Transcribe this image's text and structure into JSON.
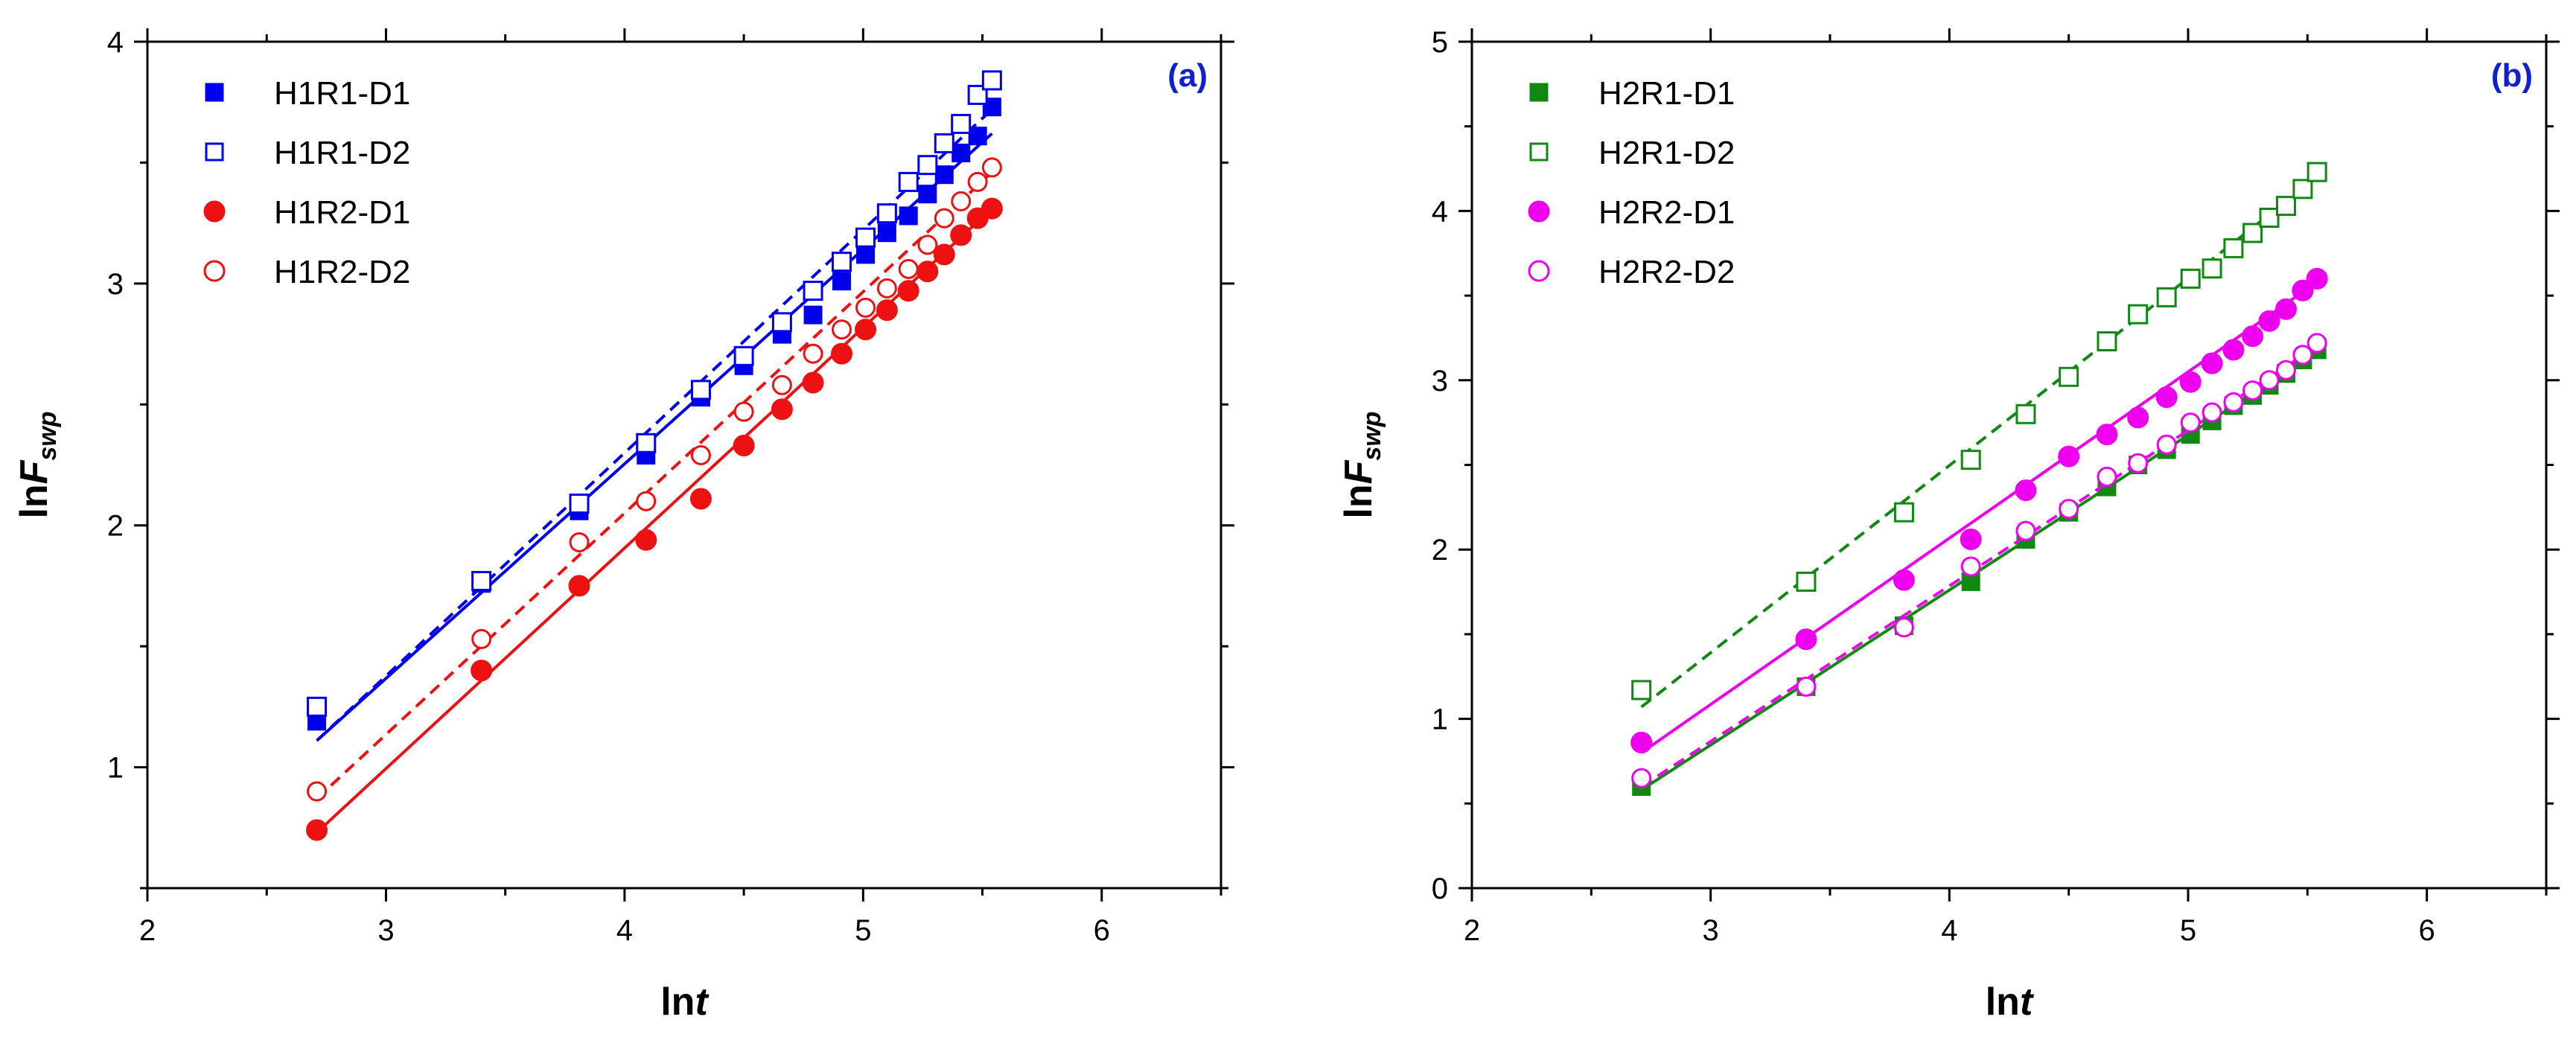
{
  "colors": {
    "blue": "#0000ee",
    "red": "#ee1111",
    "green": "#118811",
    "magenta": "#ee00ee",
    "panel_label": "#1020d0"
  },
  "chart_data": [
    {
      "type": "scatter",
      "panel_label": "(a)",
      "xlabel_prefix": "ln",
      "xlabel_var": "t",
      "ylabel_prefix": "ln",
      "ylabel_var": "F",
      "ylabel_sub": "swp",
      "xlim": [
        2,
        6.5
      ],
      "ylim": [
        0.5,
        4
      ],
      "xticks": [
        2,
        3,
        4,
        5,
        6
      ],
      "yticks": [
        1,
        2,
        3,
        4
      ],
      "legend_position": "top-left",
      "series": [
        {
          "name": "H1R1-D1",
          "color": "blue",
          "marker": "square",
          "filled": true,
          "fit_style": "solid",
          "fit": [
            [
              2.71,
              1.11
            ],
            [
              5.54,
              3.62
            ]
          ],
          "x": [
            2.71,
            3.4,
            3.81,
            4.09,
            4.32,
            4.5,
            4.66,
            4.79,
            4.91,
            5.01,
            5.1,
            5.19,
            5.27,
            5.34,
            5.41,
            5.48,
            5.54
          ],
          "y": [
            1.19,
            1.76,
            2.06,
            2.29,
            2.53,
            2.66,
            2.79,
            2.87,
            3.01,
            3.12,
            3.21,
            3.28,
            3.37,
            3.45,
            3.54,
            3.61,
            3.73
          ]
        },
        {
          "name": "H1R1-D2",
          "color": "blue",
          "marker": "square",
          "filled": false,
          "fit_style": "dashed",
          "fit": [
            [
              2.71,
              1.11
            ],
            [
              5.54,
              3.72
            ]
          ],
          "x": [
            2.71,
            3.4,
            3.81,
            4.09,
            4.32,
            4.5,
            4.66,
            4.79,
            4.91,
            5.01,
            5.1,
            5.19,
            5.27,
            5.34,
            5.41,
            5.48,
            5.54
          ],
          "y": [
            1.25,
            1.77,
            2.09,
            2.34,
            2.56,
            2.7,
            2.84,
            2.97,
            3.09,
            3.19,
            3.29,
            3.42,
            3.49,
            3.58,
            3.66,
            3.78,
            3.84
          ]
        },
        {
          "name": "H1R2-D1",
          "color": "red",
          "marker": "circle",
          "filled": true,
          "fit_style": "solid",
          "fit": [
            [
              2.71,
              0.73
            ],
            [
              5.54,
              3.31
            ]
          ],
          "x": [
            2.71,
            3.4,
            3.81,
            4.09,
            4.32,
            4.5,
            4.66,
            4.79,
            4.91,
            5.01,
            5.1,
            5.19,
            5.27,
            5.34,
            5.41,
            5.48,
            5.54
          ],
          "y": [
            0.74,
            1.4,
            1.75,
            1.94,
            2.11,
            2.33,
            2.48,
            2.59,
            2.71,
            2.81,
            2.89,
            2.97,
            3.05,
            3.12,
            3.2,
            3.27,
            3.31
          ]
        },
        {
          "name": "H1R2-D2",
          "color": "red",
          "marker": "circle",
          "filled": false,
          "fit_style": "dashed",
          "fit": [
            [
              2.71,
              0.87
            ],
            [
              5.54,
              3.46
            ]
          ],
          "x": [
            2.71,
            3.4,
            3.81,
            4.09,
            4.32,
            4.5,
            4.66,
            4.79,
            4.91,
            5.01,
            5.1,
            5.19,
            5.27,
            5.34,
            5.41,
            5.48,
            5.54
          ],
          "y": [
            0.9,
            1.53,
            1.93,
            2.1,
            2.29,
            2.47,
            2.58,
            2.71,
            2.81,
            2.9,
            2.98,
            3.06,
            3.16,
            3.27,
            3.34,
            3.42,
            3.48
          ]
        }
      ]
    },
    {
      "type": "scatter",
      "panel_label": "(b)",
      "xlabel_prefix": "ln",
      "xlabel_var": "t",
      "ylabel_prefix": "ln",
      "ylabel_var": "F",
      "ylabel_sub": "swp",
      "xlim": [
        2,
        6.5
      ],
      "ylim": [
        0,
        5
      ],
      "xticks": [
        2,
        3,
        4,
        5,
        6
      ],
      "yticks": [
        0,
        1,
        2,
        3,
        4,
        5
      ],
      "legend_position": "top-left",
      "series": [
        {
          "name": "H2R1-D1",
          "color": "green",
          "marker": "square",
          "filled": true,
          "fit_style": "solid",
          "fit": [
            [
              2.71,
              0.58
            ],
            [
              5.54,
              3.17
            ]
          ],
          "x": [
            2.71,
            3.4,
            3.81,
            4.09,
            4.32,
            4.5,
            4.66,
            4.79,
            4.91,
            5.01,
            5.1,
            5.19,
            5.27,
            5.34,
            5.41,
            5.48,
            5.54
          ],
          "y": [
            0.6,
            1.19,
            1.55,
            1.81,
            2.06,
            2.22,
            2.37,
            2.5,
            2.59,
            2.68,
            2.76,
            2.85,
            2.91,
            2.97,
            3.04,
            3.12,
            3.18
          ]
        },
        {
          "name": "H2R1-D2",
          "color": "green",
          "marker": "square",
          "filled": false,
          "fit_style": "dashed",
          "fit": [
            [
              2.71,
              1.07
            ],
            [
              5.54,
              4.2
            ]
          ],
          "x": [
            2.71,
            3.4,
            3.81,
            4.09,
            4.32,
            4.5,
            4.66,
            4.79,
            4.91,
            5.01,
            5.1,
            5.19,
            5.27,
            5.34,
            5.41,
            5.48,
            5.54
          ],
          "y": [
            1.17,
            1.81,
            2.22,
            2.53,
            2.8,
            3.02,
            3.23,
            3.39,
            3.49,
            3.6,
            3.66,
            3.78,
            3.87,
            3.96,
            4.03,
            4.13,
            4.23
          ]
        },
        {
          "name": "H2R2-D1",
          "color": "magenta",
          "marker": "circle",
          "filled": true,
          "fit_style": "solid",
          "fit": [
            [
              2.71,
              0.8
            ],
            [
              5.54,
              3.58
            ]
          ],
          "x": [
            2.71,
            3.4,
            3.81,
            4.09,
            4.32,
            4.5,
            4.66,
            4.79,
            4.91,
            5.01,
            5.1,
            5.19,
            5.27,
            5.34,
            5.41,
            5.48,
            5.54
          ],
          "y": [
            0.86,
            1.47,
            1.82,
            2.06,
            2.35,
            2.55,
            2.68,
            2.78,
            2.9,
            2.99,
            3.1,
            3.18,
            3.26,
            3.35,
            3.42,
            3.53,
            3.6
          ]
        },
        {
          "name": "H2R2-D2",
          "color": "magenta",
          "marker": "circle",
          "filled": false,
          "fit_style": "dashed",
          "fit": [
            [
              2.71,
              0.6
            ],
            [
              5.54,
              3.2
            ]
          ],
          "x": [
            2.71,
            3.4,
            3.81,
            4.09,
            4.32,
            4.5,
            4.66,
            4.79,
            4.91,
            5.01,
            5.1,
            5.19,
            5.27,
            5.34,
            5.41,
            5.48,
            5.54
          ],
          "y": [
            0.65,
            1.19,
            1.54,
            1.9,
            2.11,
            2.24,
            2.43,
            2.51,
            2.62,
            2.75,
            2.81,
            2.87,
            2.94,
            3.0,
            3.06,
            3.15,
            3.22
          ]
        }
      ]
    }
  ]
}
